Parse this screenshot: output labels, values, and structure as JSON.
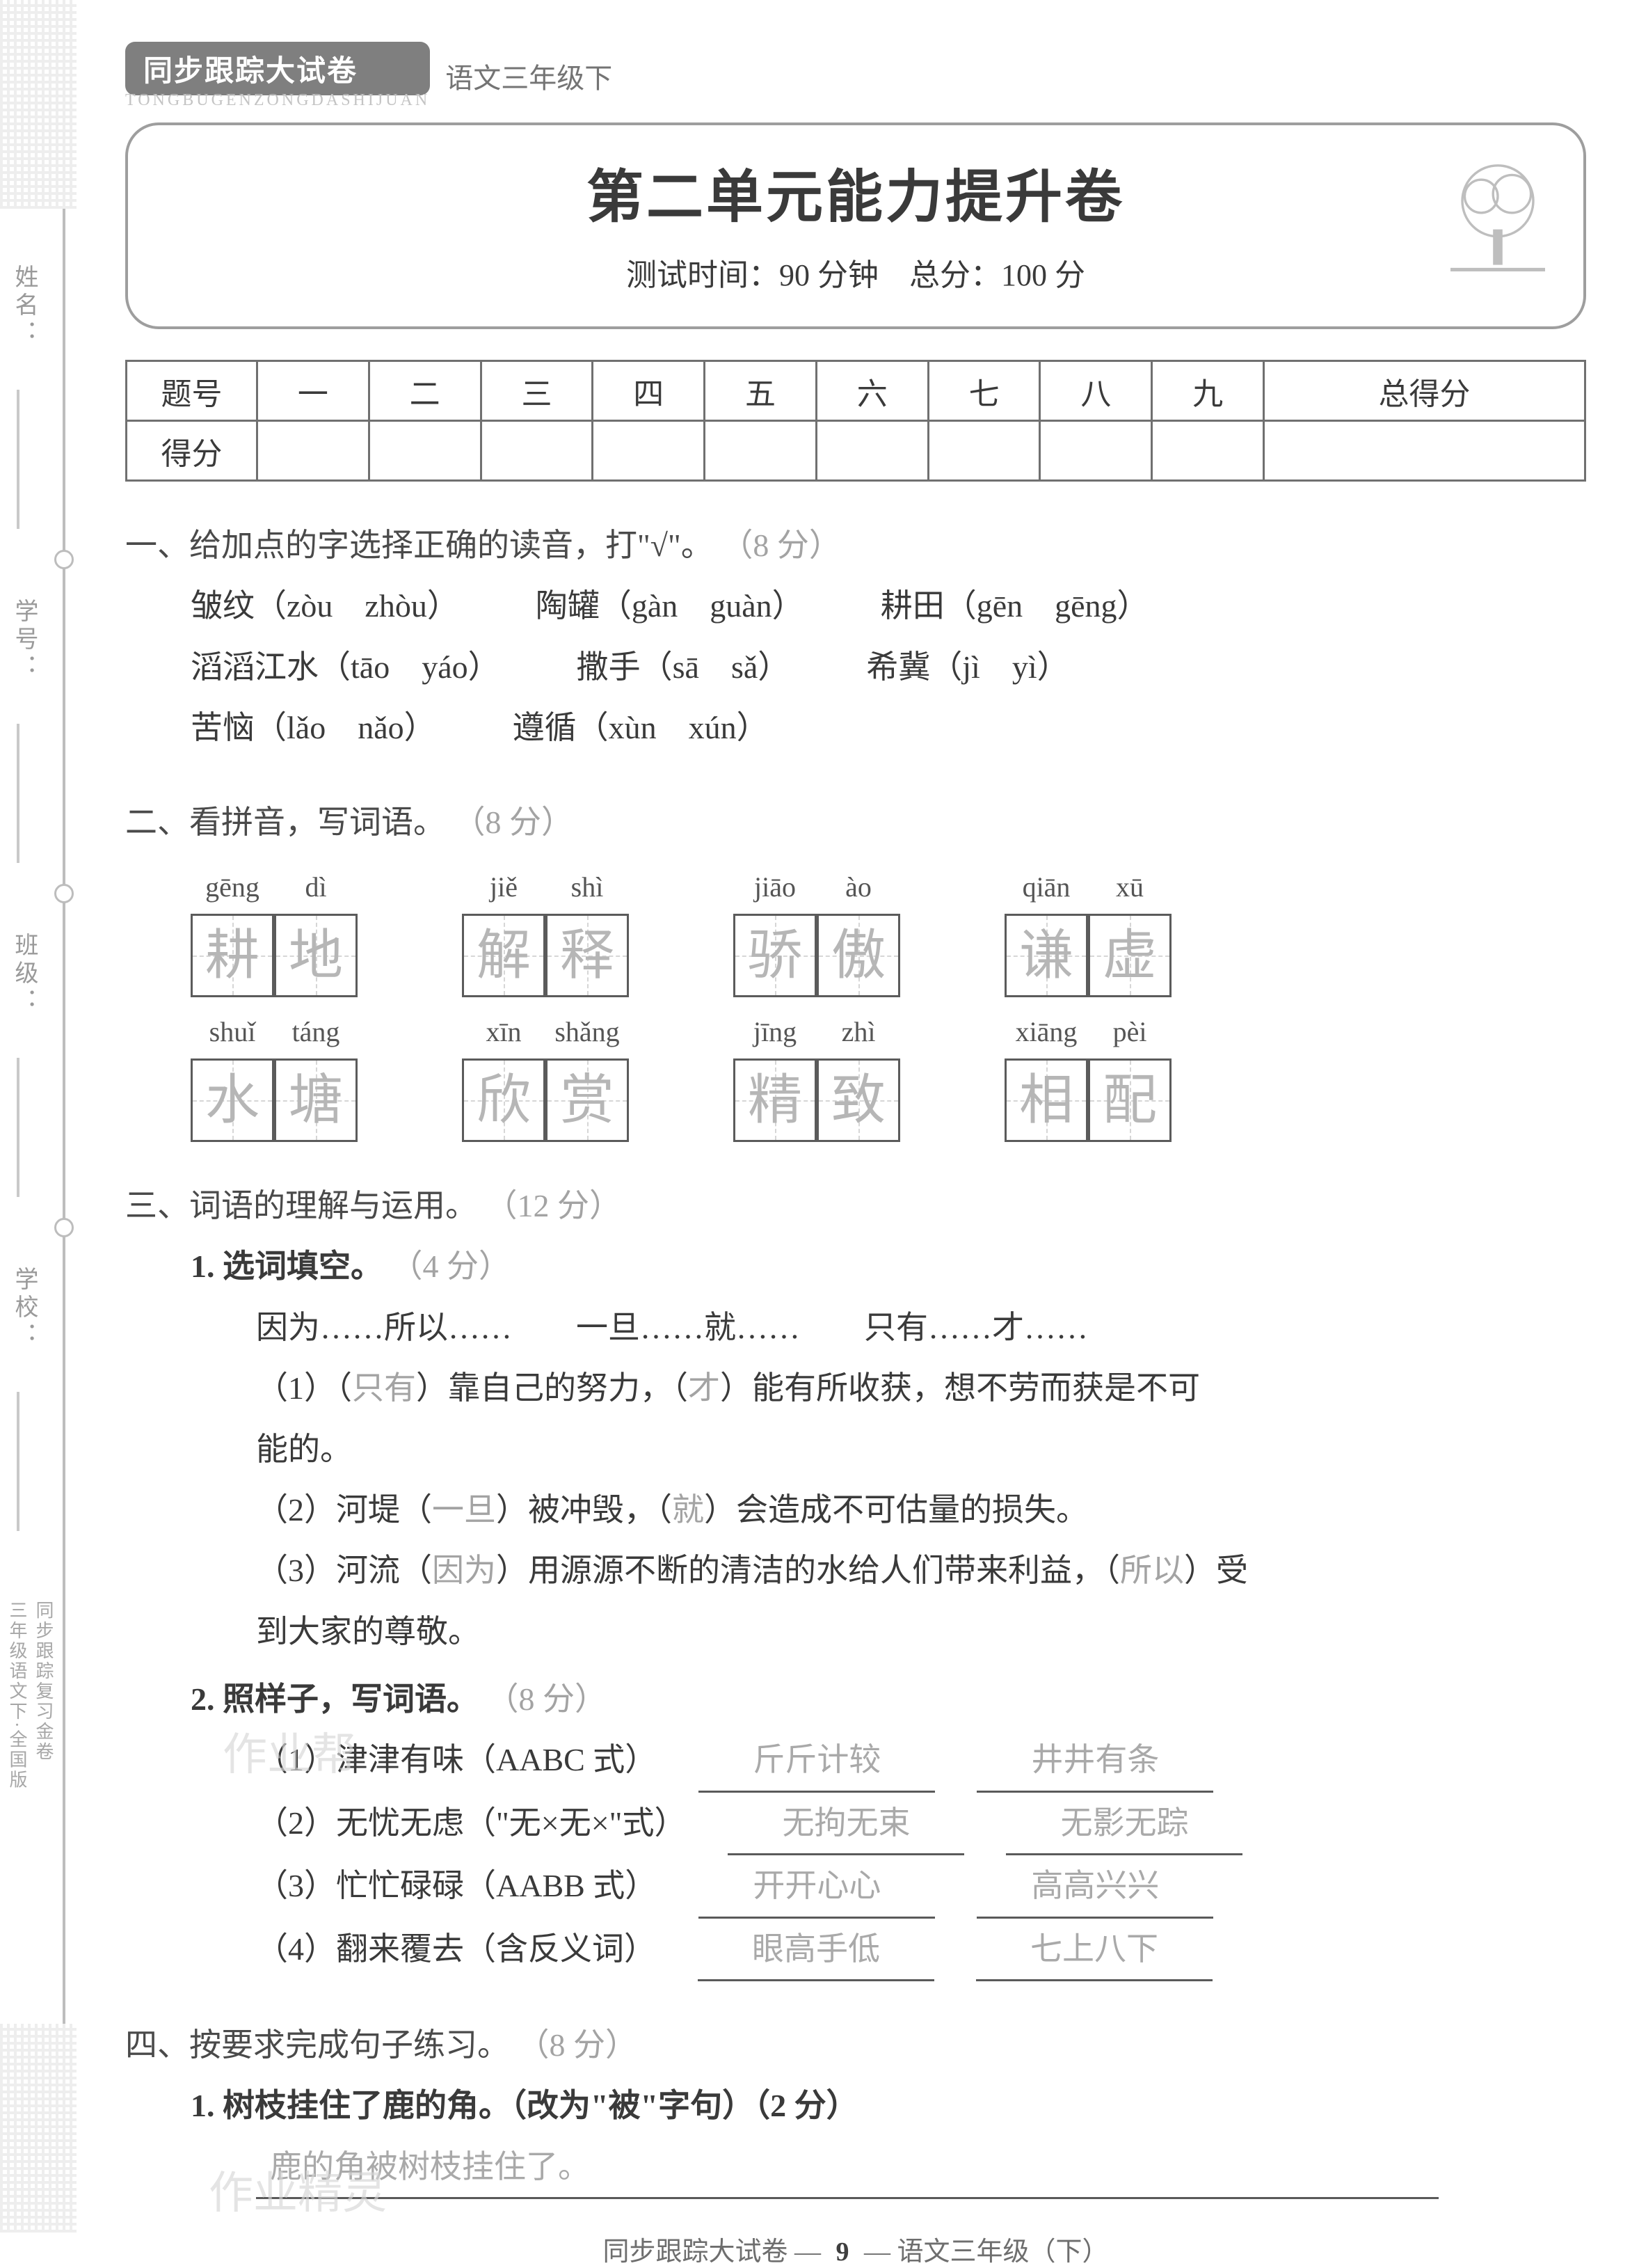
{
  "spine": {
    "labels": [
      "姓名：",
      "学号：",
      "班级：",
      "学校："
    ],
    "bottom1": "同步跟踪复习金卷",
    "bottom2": "三年级语文下·全国版"
  },
  "header": {
    "badge": "同步跟踪大试卷",
    "badge_sub": "TONGBUGENZONGDASHIJUAN",
    "subject": "语文三年级下",
    "title": "第二单元能力提升卷",
    "meta": "测试时间：90 分钟　总分：100 分"
  },
  "score_table": {
    "row1_head": "题号",
    "cols": [
      "一",
      "二",
      "三",
      "四",
      "五",
      "六",
      "七",
      "八",
      "九",
      "总得分"
    ],
    "row2_head": "得分"
  },
  "q1": {
    "title_a": "一、给加点的字选择正确的读音，打\"",
    "title_mark": "√",
    "title_b": "\"。",
    "pts": "（8 分）",
    "rows": [
      [
        "皱纹（zòu　zhòu）",
        "陶罐（gàn　guàn）",
        "耕田（gēn　gēng）"
      ],
      [
        "滔滔江水（tāo　yáo）",
        "撒手（sā　sǎ）",
        "希冀（jì　yì）"
      ],
      [
        "苦恼（lǎo　nǎo）",
        "遵循（xùn　xún）",
        ""
      ]
    ]
  },
  "q2": {
    "title": "二、看拼音，写词语。",
    "pts": "（8 分）",
    "groups": [
      [
        {
          "py": [
            "gēng",
            "dì"
          ],
          "hz": [
            "耕",
            "地"
          ]
        },
        {
          "py": [
            "jiě",
            "shì"
          ],
          "hz": [
            "解",
            "释"
          ]
        },
        {
          "py": [
            "jiāo",
            "ào"
          ],
          "hz": [
            "骄",
            "傲"
          ]
        },
        {
          "py": [
            "qiān",
            "xū"
          ],
          "hz": [
            "谦",
            "虚"
          ]
        }
      ],
      [
        {
          "py": [
            "shuǐ",
            "táng"
          ],
          "hz": [
            "水",
            "塘"
          ]
        },
        {
          "py": [
            "xīn",
            "shǎng"
          ],
          "hz": [
            "欣",
            "赏"
          ]
        },
        {
          "py": [
            "jīng",
            "zhì"
          ],
          "hz": [
            "精",
            "致"
          ]
        },
        {
          "py": [
            "xiāng",
            "pèi"
          ],
          "hz": [
            "相",
            "配"
          ]
        }
      ]
    ]
  },
  "q3": {
    "title": "三、词语的理解与运用。",
    "pts": "（12 分）",
    "s1": {
      "title": "1. 选词填空。",
      "pts": "（4 分）",
      "choices": "因为……所以……　　一旦……就……　　只有……才……",
      "items": [
        {
          "pre": "（1）（",
          "a1": "只有",
          "mid1": "）靠自己的努力，（",
          "a2": "才",
          "mid2": "）能有所收获，想不劳而获是不可",
          "tail": "能的。"
        },
        {
          "pre": "（2）河堤（",
          "a1": "一旦",
          "mid1": "）被冲毁，（",
          "a2": "就",
          "mid2": "）会造成不可估量的损失。",
          "tail": ""
        },
        {
          "pre": "（3）河流（",
          "a1": "因为",
          "mid1": "）用源源不断的清洁的水给人们带来利益，（",
          "a2": "所以",
          "mid2": "）受",
          "tail": "到大家的尊敬。"
        }
      ]
    },
    "s2": {
      "title": "2. 照样子，写词语。",
      "pts": "（8 分）",
      "rows": [
        {
          "label": "（1）津津有味（AABC 式）",
          "a": "斤斤计较",
          "b": "井井有条"
        },
        {
          "label": "（2）无忧无虑（\"无×无×\"式）",
          "a": "无拘无束",
          "b": "无影无踪"
        },
        {
          "label": "（3）忙忙碌碌（AABB 式）",
          "a": "开开心心",
          "b": "高高兴兴"
        },
        {
          "label": "（4）翻来覆去（含反义词）",
          "a": "眼高手低",
          "b": "七上八下"
        }
      ]
    }
  },
  "q4": {
    "title": "四、按要求完成句子练习。",
    "pts": "（8 分）",
    "s1": {
      "title": "1. 树枝挂住了鹿的角。（改为\"被\"字句）（2 分）",
      "ans": "鹿的角被树枝挂住了。"
    }
  },
  "footer": {
    "left": "同步跟踪大试卷",
    "page": "9",
    "right": "语文三年级（下）"
  },
  "watermarks": {
    "a": "作业帮",
    "b": "作业精灵"
  }
}
